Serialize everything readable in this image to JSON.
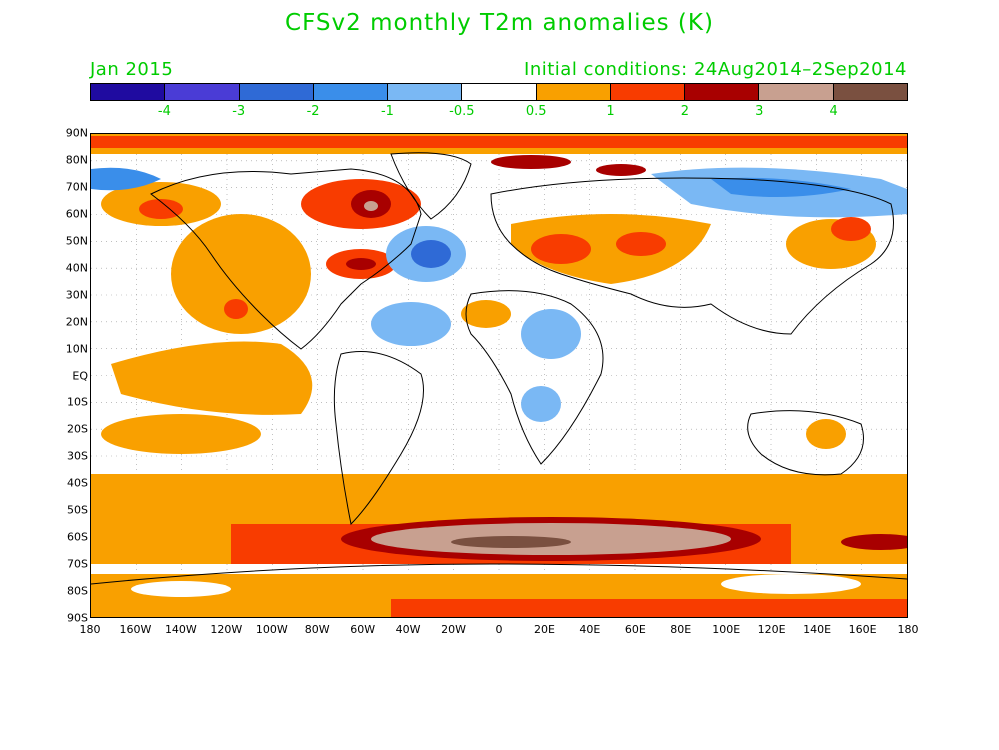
{
  "title": "CFSv2 monthly T2m anomalies (K)",
  "subtitle_left": "Jan 2015",
  "subtitle_right": "Initial conditions: 24Aug2014–2Sep2014",
  "colorbar": {
    "colors": [
      "#1f0ba0",
      "#4a3cd6",
      "#2f6ad6",
      "#3a8eea",
      "#7ab8f4",
      "#ffffff",
      "#f9a000",
      "#f83c00",
      "#a80000",
      "#c8a090",
      "#7a5040"
    ],
    "labels": [
      "-4",
      "-3",
      "-2",
      "-1",
      "-0.5",
      "0.5",
      "1",
      "2",
      "3",
      "4"
    ]
  },
  "axes": {
    "lat_labels": [
      "90N",
      "80N",
      "70N",
      "60N",
      "50N",
      "40N",
      "30N",
      "20N",
      "10N",
      "EQ",
      "10S",
      "20S",
      "30S",
      "40S",
      "50S",
      "60S",
      "70S",
      "80S",
      "90S"
    ],
    "lon_labels": [
      "180",
      "160W",
      "140W",
      "120W",
      "100W",
      "80W",
      "60W",
      "40W",
      "20W",
      "0",
      "20E",
      "40E",
      "60E",
      "80E",
      "100E",
      "120E",
      "140E",
      "160E",
      "180"
    ]
  },
  "map_legend": {
    "warm_colors": [
      "#f9a000",
      "#f83c00",
      "#a80000",
      "#c8a090",
      "#7a5040"
    ],
    "cold_colors": [
      "#7ab8f4",
      "#3a8eea",
      "#2f6ad6"
    ]
  }
}
